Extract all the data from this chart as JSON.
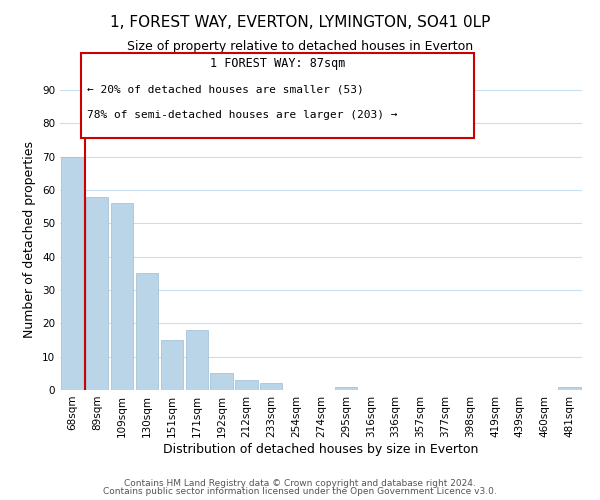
{
  "title": "1, FOREST WAY, EVERTON, LYMINGTON, SO41 0LP",
  "subtitle": "Size of property relative to detached houses in Everton",
  "xlabel": "Distribution of detached houses by size in Everton",
  "ylabel": "Number of detached properties",
  "bar_labels": [
    "68sqm",
    "89sqm",
    "109sqm",
    "130sqm",
    "151sqm",
    "171sqm",
    "192sqm",
    "212sqm",
    "233sqm",
    "254sqm",
    "274sqm",
    "295sqm",
    "316sqm",
    "336sqm",
    "357sqm",
    "377sqm",
    "398sqm",
    "419sqm",
    "439sqm",
    "460sqm",
    "481sqm"
  ],
  "bar_values": [
    70,
    58,
    56,
    35,
    15,
    18,
    5,
    3,
    2,
    0,
    0,
    1,
    0,
    0,
    0,
    0,
    0,
    0,
    0,
    0,
    1
  ],
  "bar_color": "#bad4e8",
  "marker_color": "#cc0000",
  "ylim": [
    0,
    90
  ],
  "yticks": [
    0,
    10,
    20,
    30,
    40,
    50,
    60,
    70,
    80,
    90
  ],
  "annotation_title": "1 FOREST WAY: 87sqm",
  "annotation_line1": "← 20% of detached houses are smaller (53)",
  "annotation_line2": "78% of semi-detached houses are larger (203) →",
  "footer_line1": "Contains HM Land Registry data © Crown copyright and database right 2024.",
  "footer_line2": "Contains public sector information licensed under the Open Government Licence v3.0.",
  "background_color": "#ffffff",
  "grid_color": "#c8dff0",
  "title_fontsize": 11,
  "subtitle_fontsize": 9,
  "axis_label_fontsize": 9,
  "tick_fontsize": 7.5,
  "footer_fontsize": 6.5
}
